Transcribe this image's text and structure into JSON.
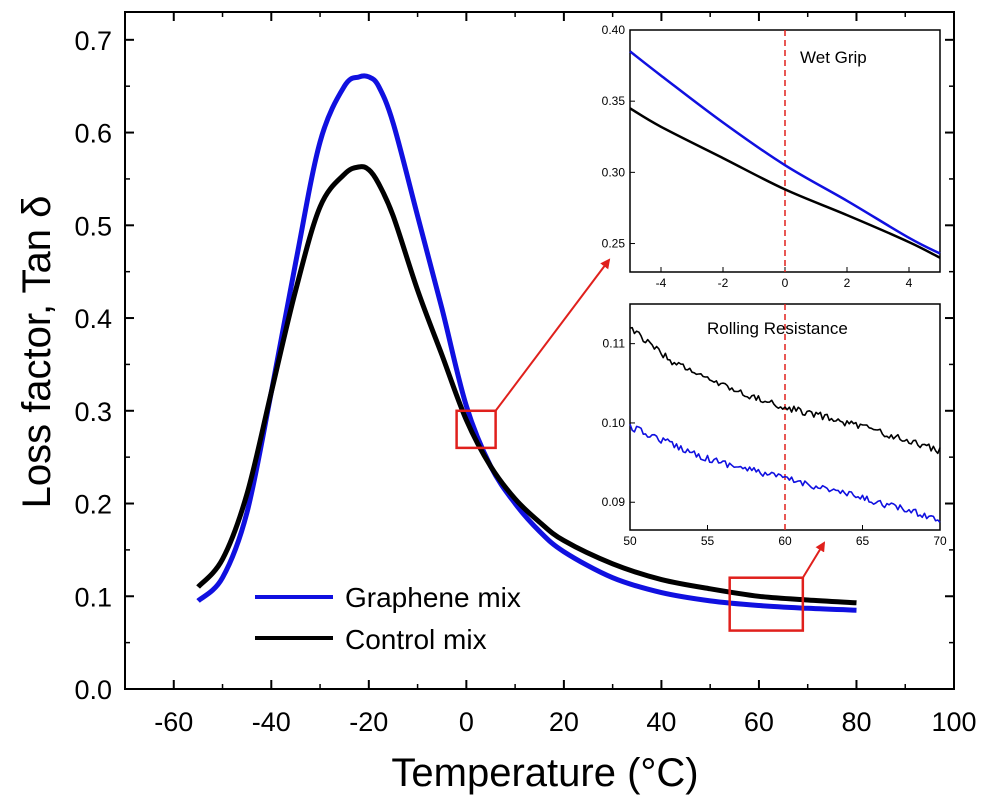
{
  "colors": {
    "graphene": "#1010e0",
    "control": "#000000",
    "highlight": "#e0201c",
    "axis": "#000000"
  },
  "chart_data": [
    {
      "type": "line",
      "title": "",
      "xlabel": "Temperature (°C)",
      "ylabel": "Loss factor, Tan δ",
      "xlim": [
        -70,
        100
      ],
      "ylim": [
        0,
        0.73
      ],
      "xticks": [
        -60,
        -40,
        -20,
        0,
        20,
        40,
        60,
        80,
        100
      ],
      "xtick_labels": [
        "-60",
        "-40",
        "-20",
        "0",
        "20",
        "40",
        "60",
        "80",
        "100"
      ],
      "yticks": [
        0,
        0.1,
        0.2,
        0.3,
        0.4,
        0.5,
        0.6,
        0.7
      ],
      "ytick_labels": [
        "0.0",
        "0.1",
        "0.2",
        "0.3",
        "0.4",
        "0.5",
        "0.6",
        "0.7"
      ],
      "legend": {
        "placement": "lower-left",
        "entries": [
          "Graphene mix",
          "Control mix"
        ]
      },
      "series": [
        {
          "name": "Graphene mix",
          "x": [
            -55,
            -50,
            -45,
            -40,
            -35,
            -30,
            -25,
            -22,
            -20,
            -18,
            -15,
            -10,
            -5,
            0,
            5,
            10,
            15,
            20,
            30,
            40,
            50,
            60,
            70,
            80
          ],
          "y": [
            0.095,
            0.12,
            0.19,
            0.32,
            0.46,
            0.59,
            0.65,
            0.66,
            0.66,
            0.65,
            0.61,
            0.51,
            0.41,
            0.305,
            0.24,
            0.2,
            0.17,
            0.148,
            0.12,
            0.104,
            0.095,
            0.09,
            0.087,
            0.085
          ]
        },
        {
          "name": "Control mix",
          "x": [
            -55,
            -50,
            -45,
            -40,
            -35,
            -30,
            -25,
            -22,
            -20,
            -18,
            -15,
            -10,
            -5,
            0,
            5,
            10,
            15,
            20,
            30,
            40,
            50,
            60,
            70,
            80
          ],
          "y": [
            0.11,
            0.14,
            0.21,
            0.32,
            0.43,
            0.52,
            0.555,
            0.563,
            0.56,
            0.545,
            0.51,
            0.43,
            0.36,
            0.29,
            0.24,
            0.205,
            0.18,
            0.16,
            0.135,
            0.118,
            0.108,
            0.1,
            0.096,
            0.093
          ]
        }
      ],
      "highlight_boxes": [
        {
          "x_range": [
            -2,
            6
          ],
          "y_range": [
            0.26,
            0.3
          ],
          "links_to": "Wet Grip inset"
        },
        {
          "x_range": [
            54,
            69
          ],
          "y_range": [
            0.063,
            0.12
          ],
          "links_to": "Rolling Resistance inset"
        }
      ]
    },
    {
      "type": "line",
      "title": "Wet Grip",
      "xlim": [
        -5,
        5
      ],
      "ylim": [
        0.23,
        0.4
      ],
      "xticks": [
        -4,
        -2,
        0,
        2,
        4
      ],
      "xtick_labels": [
        "-4",
        "-2",
        "0",
        "2",
        "4"
      ],
      "yticks": [
        0.25,
        0.3,
        0.35,
        0.4
      ],
      "ytick_labels": [
        "0.25",
        "0.30",
        "0.35",
        "0.40"
      ],
      "vline": 0,
      "series": [
        {
          "name": "Graphene mix",
          "x": [
            -5,
            -4,
            -2,
            0,
            2,
            4,
            5
          ],
          "y": [
            0.385,
            0.368,
            0.335,
            0.305,
            0.28,
            0.254,
            0.243
          ]
        },
        {
          "name": "Control mix",
          "x": [
            -5,
            -4,
            -2,
            0,
            2,
            4,
            5
          ],
          "y": [
            0.345,
            0.332,
            0.31,
            0.288,
            0.27,
            0.251,
            0.24
          ]
        }
      ]
    },
    {
      "type": "line",
      "title": "Rolling Resistance",
      "xlim": [
        50,
        70
      ],
      "ylim": [
        0.0865,
        0.115
      ],
      "xticks": [
        50,
        55,
        60,
        65,
        70
      ],
      "xtick_labels": [
        "50",
        "55",
        "60",
        "65",
        "70"
      ],
      "yticks": [
        0.09,
        0.1,
        0.11
      ],
      "ytick_labels": [
        "0.09",
        "0.10",
        "0.11"
      ],
      "vline": 60,
      "series": [
        {
          "name": "Graphene mix",
          "x": [
            50,
            52.5,
            55,
            57.5,
            60,
            62.5,
            65,
            67.5,
            70
          ],
          "y": [
            0.0995,
            0.0975,
            0.0955,
            0.0942,
            0.093,
            0.0918,
            0.0905,
            0.0892,
            0.0878
          ]
        },
        {
          "name": "Control mix",
          "x": [
            50,
            52.5,
            55,
            57.5,
            60,
            62.5,
            65,
            67.5,
            70
          ],
          "y": [
            0.112,
            0.108,
            0.1055,
            0.1035,
            0.102,
            0.1008,
            0.0995,
            0.098,
            0.0965
          ]
        }
      ]
    }
  ]
}
